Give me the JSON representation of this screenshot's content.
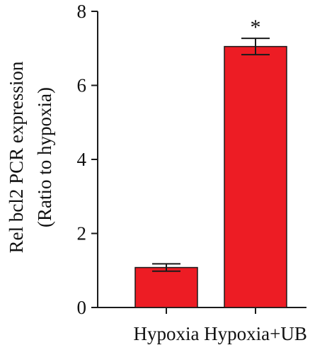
{
  "chart_data": {
    "type": "bar",
    "categories": [
      "Hypoxia",
      "Hypoxia+UB"
    ],
    "values": [
      1.08,
      7.05
    ],
    "errors": [
      0.1,
      0.22
    ],
    "annotations": [
      "",
      "*"
    ],
    "ylabel_lines": [
      "Rel bcl2 PCR expression",
      "(Ratio to hypoxia)"
    ],
    "xlabel": "",
    "ylim": [
      0,
      8
    ],
    "yticks": [
      0,
      2,
      4,
      6,
      8
    ],
    "grid": false,
    "colors": {
      "bar": "#ED1C24",
      "bar_edge": "#1a1a1a",
      "axis": "#1a1a1a"
    }
  }
}
